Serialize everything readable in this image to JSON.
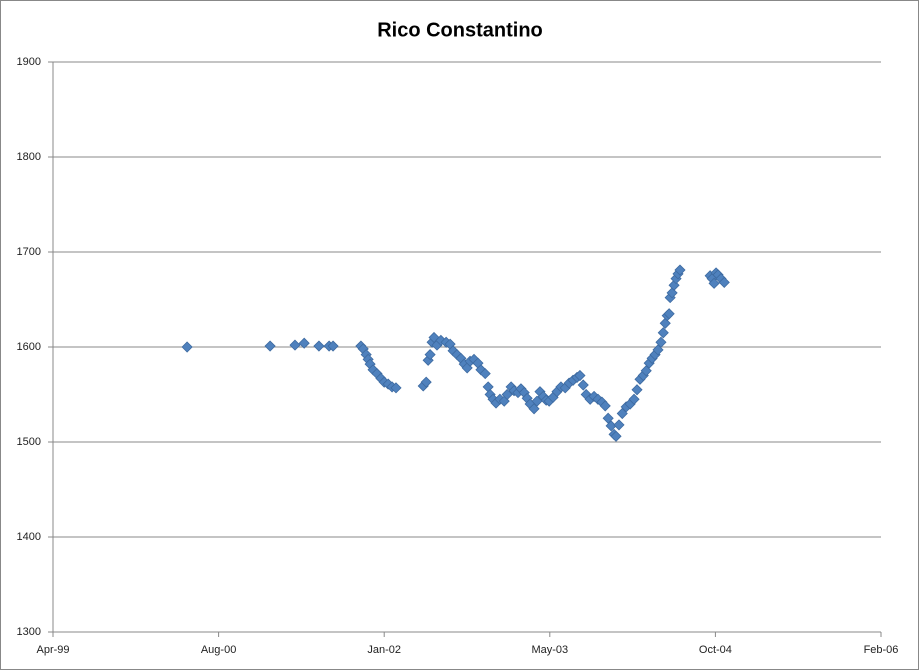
{
  "chart_data": {
    "type": "scatter",
    "title": "Rico Constantino",
    "x": [
      36660,
      36913,
      36989,
      37017,
      37062,
      37093,
      37105,
      37190,
      37197,
      37206,
      37212,
      37218,
      37227,
      37239,
      37251,
      37261,
      37273,
      37285,
      37297,
      37380,
      37389,
      37395,
      37401,
      37407,
      37413,
      37422,
      37434,
      37450,
      37462,
      37471,
      37483,
      37495,
      37505,
      37514,
      37523,
      37535,
      37547,
      37556,
      37569,
      37578,
      37584,
      37593,
      37602,
      37614,
      37627,
      37636,
      37648,
      37657,
      37669,
      37678,
      37688,
      37697,
      37706,
      37718,
      37727,
      37736,
      37746,
      37755,
      37764,
      37776,
      37788,
      37800,
      37813,
      37825,
      37837,
      37849,
      37858,
      37868,
      37877,
      37889,
      37901,
      37913,
      37925,
      37935,
      37944,
      37953,
      37962,
      37968,
      37977,
      37987,
      37999,
      38011,
      38023,
      38032,
      38041,
      38051,
      38060,
      38069,
      38078,
      38087,
      38096,
      38105,
      38112,
      38118,
      38124,
      38130,
      38133,
      38139,
      38145,
      38151,
      38157,
      38163,
      38255,
      38261,
      38267,
      38273,
      38279,
      38288,
      38298
    ],
    "series": [
      {
        "name": "Rico Constantino",
        "color": "#4f81bd",
        "values": [
          1600,
          1601,
          1602,
          1604,
          1601,
          1601,
          1601,
          1601,
          1598,
          1592,
          1587,
          1582,
          1576,
          1572,
          1567,
          1563,
          1561,
          1558,
          1557,
          1559,
          1563,
          1586,
          1592,
          1605,
          1610,
          1602,
          1607,
          1605,
          1603,
          1596,
          1592,
          1588,
          1582,
          1578,
          1585,
          1587,
          1583,
          1576,
          1572,
          1558,
          1550,
          1545,
          1541,
          1545,
          1543,
          1550,
          1558,
          1554,
          1552,
          1556,
          1552,
          1546,
          1540,
          1535,
          1543,
          1553,
          1548,
          1544,
          1543,
          1547,
          1553,
          1558,
          1557,
          1562,
          1565,
          1568,
          1570,
          1560,
          1550,
          1545,
          1548,
          1545,
          1542,
          1538,
          1525,
          1517,
          1508,
          1506,
          1518,
          1530,
          1537,
          1540,
          1545,
          1555,
          1566,
          1570,
          1575,
          1583,
          1588,
          1592,
          1597,
          1605,
          1615,
          1625,
          1633,
          1635,
          1652,
          1657,
          1665,
          1672,
          1677,
          1681,
          1675,
          1672,
          1667,
          1678,
          1676,
          1672,
          1668
        ]
      }
    ],
    "xlim": [
      36251,
      38776
    ],
    "xticks": [
      {
        "value": 36251,
        "label": "Apr-99"
      },
      {
        "value": 36756,
        "label": "Aug-00"
      },
      {
        "value": 37261,
        "label": "Jan-02"
      },
      {
        "value": 37766,
        "label": "May-03"
      },
      {
        "value": 38271,
        "label": "Oct-04"
      },
      {
        "value": 38776,
        "label": "Feb-06"
      }
    ],
    "ylim": [
      1300,
      1900
    ],
    "yticks": [
      1300,
      1400,
      1500,
      1600,
      1700,
      1800,
      1900
    ],
    "grid": true
  }
}
